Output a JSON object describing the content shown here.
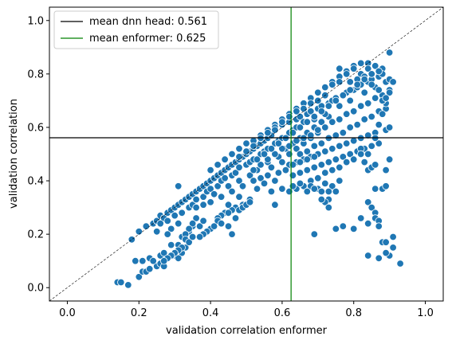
{
  "chart_data": {
    "type": "scatter",
    "title": "",
    "xlabel": "validation correlation enformer",
    "ylabel": "validation correlation",
    "xlim": [
      -0.05,
      1.05
    ],
    "ylim": [
      -0.05,
      1.05
    ],
    "xticks": [
      0.0,
      0.2,
      0.4,
      0.6,
      0.8,
      1.0
    ],
    "yticks": [
      0.0,
      0.2,
      0.4,
      0.6,
      0.8,
      1.0
    ],
    "xtick_labels": [
      "0.0",
      "0.2",
      "0.4",
      "0.6",
      "0.8",
      "1.0"
    ],
    "ytick_labels": [
      "0.0",
      "0.2",
      "0.4",
      "0.6",
      "0.8",
      "1.0"
    ],
    "grid": false,
    "legend_position": "top-left",
    "marker_color": "#1f77b4",
    "marker_edge_color": "#ffffff",
    "diagonal": {
      "from": [
        -0.05,
        -0.05
      ],
      "to": [
        1.05,
        1.05
      ],
      "color": "#000000",
      "style": "dashed"
    },
    "reference_lines": [
      {
        "name": "mean dnn head: 0.561",
        "orientation": "horizontal",
        "value": 0.561,
        "color": "#000000"
      },
      {
        "name": "mean enformer: 0.625",
        "orientation": "vertical",
        "value": 0.625,
        "color": "#008000"
      }
    ],
    "points": [
      [
        0.14,
        0.02
      ],
      [
        0.15,
        0.02
      ],
      [
        0.17,
        0.01
      ],
      [
        0.2,
        0.04
      ],
      [
        0.21,
        0.06
      ],
      [
        0.22,
        0.06
      ],
      [
        0.23,
        0.07
      ],
      [
        0.25,
        0.08
      ],
      [
        0.26,
        0.09
      ],
      [
        0.27,
        0.08
      ],
      [
        0.28,
        0.11
      ],
      [
        0.3,
        0.12
      ],
      [
        0.32,
        0.13
      ],
      [
        0.33,
        0.15
      ],
      [
        0.31,
        0.11
      ],
      [
        0.19,
        0.1
      ],
      [
        0.21,
        0.1
      ],
      [
        0.23,
        0.11
      ],
      [
        0.24,
        0.1
      ],
      [
        0.26,
        0.12
      ],
      [
        0.27,
        0.13
      ],
      [
        0.29,
        0.16
      ],
      [
        0.31,
        0.16
      ],
      [
        0.32,
        0.19
      ],
      [
        0.34,
        0.21
      ],
      [
        0.33,
        0.18
      ],
      [
        0.35,
        0.23
      ],
      [
        0.29,
        0.22
      ],
      [
        0.31,
        0.24
      ],
      [
        0.28,
        0.2
      ],
      [
        0.25,
        0.21
      ],
      [
        0.18,
        0.18
      ],
      [
        0.2,
        0.21
      ],
      [
        0.22,
        0.23
      ],
      [
        0.24,
        0.24
      ],
      [
        0.25,
        0.25
      ],
      [
        0.26,
        0.27
      ],
      [
        0.27,
        0.26
      ],
      [
        0.28,
        0.28
      ],
      [
        0.29,
        0.29
      ],
      [
        0.3,
        0.3
      ],
      [
        0.31,
        0.31
      ],
      [
        0.32,
        0.32
      ],
      [
        0.33,
        0.33
      ],
      [
        0.34,
        0.34
      ],
      [
        0.35,
        0.35
      ],
      [
        0.36,
        0.36
      ],
      [
        0.37,
        0.37
      ],
      [
        0.38,
        0.38
      ],
      [
        0.39,
        0.39
      ],
      [
        0.4,
        0.4
      ],
      [
        0.41,
        0.41
      ],
      [
        0.42,
        0.42
      ],
      [
        0.43,
        0.43
      ],
      [
        0.44,
        0.44
      ],
      [
        0.45,
        0.45
      ],
      [
        0.46,
        0.46
      ],
      [
        0.47,
        0.47
      ],
      [
        0.48,
        0.48
      ],
      [
        0.49,
        0.49
      ],
      [
        0.5,
        0.5
      ],
      [
        0.51,
        0.51
      ],
      [
        0.52,
        0.52
      ],
      [
        0.53,
        0.53
      ],
      [
        0.54,
        0.54
      ],
      [
        0.55,
        0.55
      ],
      [
        0.56,
        0.56
      ],
      [
        0.57,
        0.57
      ],
      [
        0.26,
        0.24
      ],
      [
        0.28,
        0.25
      ],
      [
        0.3,
        0.27
      ],
      [
        0.32,
        0.28
      ],
      [
        0.34,
        0.3
      ],
      [
        0.35,
        0.31
      ],
      [
        0.36,
        0.33
      ],
      [
        0.38,
        0.34
      ],
      [
        0.39,
        0.36
      ],
      [
        0.4,
        0.37
      ],
      [
        0.42,
        0.38
      ],
      [
        0.43,
        0.4
      ],
      [
        0.44,
        0.41
      ],
      [
        0.46,
        0.42
      ],
      [
        0.47,
        0.43
      ],
      [
        0.48,
        0.45
      ],
      [
        0.5,
        0.46
      ],
      [
        0.51,
        0.47
      ],
      [
        0.52,
        0.48
      ],
      [
        0.54,
        0.5
      ],
      [
        0.55,
        0.51
      ],
      [
        0.56,
        0.52
      ],
      [
        0.58,
        0.54
      ],
      [
        0.59,
        0.55
      ],
      [
        0.6,
        0.56
      ],
      [
        0.62,
        0.58
      ],
      [
        0.63,
        0.59
      ],
      [
        0.64,
        0.6
      ],
      [
        0.31,
        0.38
      ],
      [
        0.36,
        0.3
      ],
      [
        0.38,
        0.31
      ],
      [
        0.4,
        0.32
      ],
      [
        0.41,
        0.35
      ],
      [
        0.43,
        0.34
      ],
      [
        0.45,
        0.38
      ],
      [
        0.46,
        0.36
      ],
      [
        0.48,
        0.4
      ],
      [
        0.49,
        0.38
      ],
      [
        0.51,
        0.42
      ],
      [
        0.53,
        0.44
      ],
      [
        0.54,
        0.41
      ],
      [
        0.56,
        0.47
      ],
      [
        0.57,
        0.45
      ],
      [
        0.59,
        0.49
      ],
      [
        0.6,
        0.47
      ],
      [
        0.61,
        0.52
      ],
      [
        0.62,
        0.5
      ],
      [
        0.63,
        0.54
      ],
      [
        0.64,
        0.52
      ],
      [
        0.65,
        0.56
      ],
      [
        0.66,
        0.54
      ],
      [
        0.67,
        0.58
      ],
      [
        0.68,
        0.56
      ],
      [
        0.69,
        0.6
      ],
      [
        0.7,
        0.58
      ],
      [
        0.71,
        0.62
      ],
      [
        0.72,
        0.6
      ],
      [
        0.73,
        0.64
      ],
      [
        0.4,
        0.44
      ],
      [
        0.42,
        0.46
      ],
      [
        0.44,
        0.48
      ],
      [
        0.46,
        0.5
      ],
      [
        0.48,
        0.52
      ],
      [
        0.5,
        0.54
      ],
      [
        0.52,
        0.55
      ],
      [
        0.54,
        0.57
      ],
      [
        0.56,
        0.59
      ],
      [
        0.58,
        0.61
      ],
      [
        0.6,
        0.63
      ],
      [
        0.62,
        0.65
      ],
      [
        0.64,
        0.67
      ],
      [
        0.66,
        0.69
      ],
      [
        0.68,
        0.71
      ],
      [
        0.7,
        0.73
      ],
      [
        0.72,
        0.75
      ],
      [
        0.74,
        0.77
      ],
      [
        0.76,
        0.79
      ],
      [
        0.78,
        0.81
      ],
      [
        0.8,
        0.83
      ],
      [
        0.82,
        0.84
      ],
      [
        0.84,
        0.84
      ],
      [
        0.86,
        0.83
      ],
      [
        0.88,
        0.82
      ],
      [
        0.58,
        0.6
      ],
      [
        0.6,
        0.61
      ],
      [
        0.62,
        0.62
      ],
      [
        0.64,
        0.63
      ],
      [
        0.65,
        0.64
      ],
      [
        0.66,
        0.62
      ],
      [
        0.67,
        0.65
      ],
      [
        0.68,
        0.66
      ],
      [
        0.69,
        0.63
      ],
      [
        0.7,
        0.67
      ],
      [
        0.71,
        0.68
      ],
      [
        0.72,
        0.65
      ],
      [
        0.73,
        0.69
      ],
      [
        0.74,
        0.7
      ],
      [
        0.75,
        0.71
      ],
      [
        0.76,
        0.68
      ],
      [
        0.77,
        0.72
      ],
      [
        0.78,
        0.73
      ],
      [
        0.79,
        0.7
      ],
      [
        0.8,
        0.74
      ],
      [
        0.81,
        0.75
      ],
      [
        0.82,
        0.76
      ],
      [
        0.83,
        0.73
      ],
      [
        0.84,
        0.77
      ],
      [
        0.85,
        0.78
      ],
      [
        0.86,
        0.75
      ],
      [
        0.87,
        0.79
      ],
      [
        0.88,
        0.8
      ],
      [
        0.89,
        0.77
      ],
      [
        0.9,
        0.78
      ],
      [
        0.6,
        0.52
      ],
      [
        0.62,
        0.53
      ],
      [
        0.64,
        0.55
      ],
      [
        0.66,
        0.56
      ],
      [
        0.68,
        0.57
      ],
      [
        0.7,
        0.59
      ],
      [
        0.72,
        0.6
      ],
      [
        0.74,
        0.62
      ],
      [
        0.76,
        0.63
      ],
      [
        0.78,
        0.65
      ],
      [
        0.8,
        0.66
      ],
      [
        0.82,
        0.68
      ],
      [
        0.84,
        0.69
      ],
      [
        0.86,
        0.71
      ],
      [
        0.88,
        0.72
      ],
      [
        0.9,
        0.74
      ],
      [
        0.65,
        0.5
      ],
      [
        0.67,
        0.51
      ],
      [
        0.69,
        0.53
      ],
      [
        0.71,
        0.54
      ],
      [
        0.73,
        0.56
      ],
      [
        0.75,
        0.57
      ],
      [
        0.77,
        0.58
      ],
      [
        0.79,
        0.6
      ],
      [
        0.81,
        0.61
      ],
      [
        0.83,
        0.63
      ],
      [
        0.85,
        0.64
      ],
      [
        0.87,
        0.66
      ],
      [
        0.89,
        0.67
      ],
      [
        0.62,
        0.46
      ],
      [
        0.64,
        0.47
      ],
      [
        0.66,
        0.48
      ],
      [
        0.68,
        0.49
      ],
      [
        0.7,
        0.5
      ],
      [
        0.72,
        0.51
      ],
      [
        0.74,
        0.52
      ],
      [
        0.76,
        0.53
      ],
      [
        0.78,
        0.54
      ],
      [
        0.8,
        0.55
      ],
      [
        0.82,
        0.56
      ],
      [
        0.84,
        0.57
      ],
      [
        0.86,
        0.58
      ],
      [
        0.63,
        0.42
      ],
      [
        0.65,
        0.43
      ],
      [
        0.67,
        0.44
      ],
      [
        0.69,
        0.45
      ],
      [
        0.71,
        0.46
      ],
      [
        0.73,
        0.47
      ],
      [
        0.75,
        0.48
      ],
      [
        0.77,
        0.49
      ],
      [
        0.79,
        0.5
      ],
      [
        0.81,
        0.51
      ],
      [
        0.83,
        0.52
      ],
      [
        0.85,
        0.53
      ],
      [
        0.87,
        0.54
      ],
      [
        0.76,
        0.82
      ],
      [
        0.78,
        0.8
      ],
      [
        0.8,
        0.82
      ],
      [
        0.82,
        0.8
      ],
      [
        0.84,
        0.82
      ],
      [
        0.79,
        0.77
      ],
      [
        0.81,
        0.78
      ],
      [
        0.83,
        0.79
      ],
      [
        0.85,
        0.8
      ],
      [
        0.87,
        0.81
      ],
      [
        0.74,
        0.76
      ],
      [
        0.76,
        0.77
      ],
      [
        0.72,
        0.72
      ],
      [
        0.7,
        0.7
      ],
      [
        0.68,
        0.69
      ],
      [
        0.66,
        0.67
      ],
      [
        0.64,
        0.66
      ],
      [
        0.62,
        0.64
      ],
      [
        0.6,
        0.62
      ],
      [
        0.58,
        0.59
      ],
      [
        0.56,
        0.58
      ],
      [
        0.54,
        0.56
      ],
      [
        0.52,
        0.53
      ],
      [
        0.5,
        0.51
      ],
      [
        0.48,
        0.49
      ],
      [
        0.87,
        0.61
      ],
      [
        0.88,
        0.65
      ],
      [
        0.89,
        0.69
      ],
      [
        0.9,
        0.73
      ],
      [
        0.91,
        0.77
      ],
      [
        0.9,
        0.88
      ],
      [
        0.89,
        0.59
      ],
      [
        0.86,
        0.56
      ],
      [
        0.85,
        0.53
      ],
      [
        0.84,
        0.5
      ],
      [
        0.83,
        0.47
      ],
      [
        0.84,
        0.44
      ],
      [
        0.85,
        0.45
      ],
      [
        0.82,
        0.52
      ],
      [
        0.8,
        0.48
      ],
      [
        0.62,
        0.36
      ],
      [
        0.64,
        0.37
      ],
      [
        0.66,
        0.38
      ],
      [
        0.68,
        0.4
      ],
      [
        0.7,
        0.41
      ],
      [
        0.72,
        0.43
      ],
      [
        0.74,
        0.44
      ],
      [
        0.76,
        0.45
      ],
      [
        0.78,
        0.47
      ],
      [
        0.8,
        0.48
      ],
      [
        0.82,
        0.5
      ],
      [
        0.61,
        0.44
      ],
      [
        0.63,
        0.46
      ],
      [
        0.65,
        0.47
      ],
      [
        0.67,
        0.48
      ],
      [
        0.69,
        0.49
      ],
      [
        0.56,
        0.42
      ],
      [
        0.58,
        0.4
      ],
      [
        0.59,
        0.43
      ],
      [
        0.57,
        0.36
      ],
      [
        0.6,
        0.37
      ],
      [
        0.55,
        0.39
      ],
      [
        0.53,
        0.37
      ],
      [
        0.52,
        0.4
      ],
      [
        0.58,
        0.31
      ],
      [
        0.51,
        0.33
      ],
      [
        0.49,
        0.31
      ],
      [
        0.48,
        0.34
      ],
      [
        0.47,
        0.3
      ],
      [
        0.46,
        0.29
      ],
      [
        0.45,
        0.31
      ],
      [
        0.44,
        0.28
      ],
      [
        0.43,
        0.27
      ],
      [
        0.42,
        0.26
      ],
      [
        0.68,
        0.38
      ],
      [
        0.7,
        0.37
      ],
      [
        0.72,
        0.39
      ],
      [
        0.74,
        0.38
      ],
      [
        0.76,
        0.4
      ],
      [
        0.73,
        0.33
      ],
      [
        0.75,
        0.36
      ],
      [
        0.72,
        0.32
      ],
      [
        0.71,
        0.36
      ],
      [
        0.42,
        0.25
      ],
      [
        0.43,
        0.24
      ],
      [
        0.45,
        0.23
      ],
      [
        0.45,
        0.28
      ],
      [
        0.47,
        0.26
      ],
      [
        0.46,
        0.2
      ],
      [
        0.48,
        0.29
      ],
      [
        0.49,
        0.3
      ],
      [
        0.5,
        0.31
      ],
      [
        0.51,
        0.32
      ],
      [
        0.58,
        0.31
      ],
      [
        0.36,
        0.26
      ],
      [
        0.35,
        0.24
      ],
      [
        0.34,
        0.22
      ],
      [
        0.33,
        0.2
      ],
      [
        0.33,
        0.18
      ],
      [
        0.32,
        0.15
      ],
      [
        0.31,
        0.14
      ],
      [
        0.3,
        0.13
      ],
      [
        0.29,
        0.12
      ],
      [
        0.28,
        0.11
      ],
      [
        0.27,
        0.1
      ],
      [
        0.34,
        0.17
      ],
      [
        0.35,
        0.19
      ],
      [
        0.37,
        0.23
      ],
      [
        0.38,
        0.25
      ],
      [
        0.4,
        0.22
      ],
      [
        0.41,
        0.23
      ],
      [
        0.39,
        0.21
      ],
      [
        0.38,
        0.2
      ],
      [
        0.37,
        0.19
      ],
      [
        0.63,
        0.38
      ],
      [
        0.65,
        0.39
      ],
      [
        0.67,
        0.36
      ],
      [
        0.69,
        0.37
      ],
      [
        0.71,
        0.33
      ],
      [
        0.73,
        0.3
      ],
      [
        0.75,
        0.22
      ],
      [
        0.77,
        0.23
      ],
      [
        0.8,
        0.22
      ],
      [
        0.82,
        0.26
      ],
      [
        0.84,
        0.24
      ],
      [
        0.84,
        0.32
      ],
      [
        0.85,
        0.3
      ],
      [
        0.86,
        0.28
      ],
      [
        0.86,
        0.26
      ],
      [
        0.87,
        0.25
      ],
      [
        0.87,
        0.23
      ],
      [
        0.84,
        0.12
      ],
      [
        0.87,
        0.11
      ],
      [
        0.88,
        0.17
      ],
      [
        0.89,
        0.17
      ],
      [
        0.9,
        0.12
      ],
      [
        0.91,
        0.15
      ],
      [
        0.91,
        0.19
      ],
      [
        0.93,
        0.09
      ],
      [
        0.89,
        0.13
      ],
      [
        0.69,
        0.2
      ],
      [
        0.73,
        0.36
      ],
      [
        0.86,
        0.46
      ],
      [
        0.89,
        0.44
      ],
      [
        0.9,
        0.48
      ],
      [
        0.86,
        0.37
      ],
      [
        0.88,
        0.37
      ],
      [
        0.89,
        0.38
      ],
      [
        0.9,
        0.6
      ],
      [
        0.52,
        0.44
      ],
      [
        0.54,
        0.46
      ],
      [
        0.56,
        0.48
      ],
      [
        0.58,
        0.5
      ],
      [
        0.6,
        0.52
      ],
      [
        0.53,
        0.48
      ],
      [
        0.55,
        0.5
      ],
      [
        0.57,
        0.52
      ],
      [
        0.59,
        0.54
      ],
      [
        0.61,
        0.56
      ],
      [
        0.63,
        0.58
      ],
      [
        0.65,
        0.6
      ],
      [
        0.67,
        0.62
      ],
      [
        0.69,
        0.64
      ],
      [
        0.71,
        0.66
      ],
      [
        0.73,
        0.68
      ],
      [
        0.75,
        0.7
      ],
      [
        0.77,
        0.72
      ],
      [
        0.79,
        0.74
      ],
      [
        0.81,
        0.76
      ],
      [
        0.83,
        0.78
      ],
      [
        0.85,
        0.76
      ],
      [
        0.87,
        0.74
      ],
      [
        0.88,
        0.7
      ],
      [
        0.89,
        0.71
      ]
    ]
  }
}
